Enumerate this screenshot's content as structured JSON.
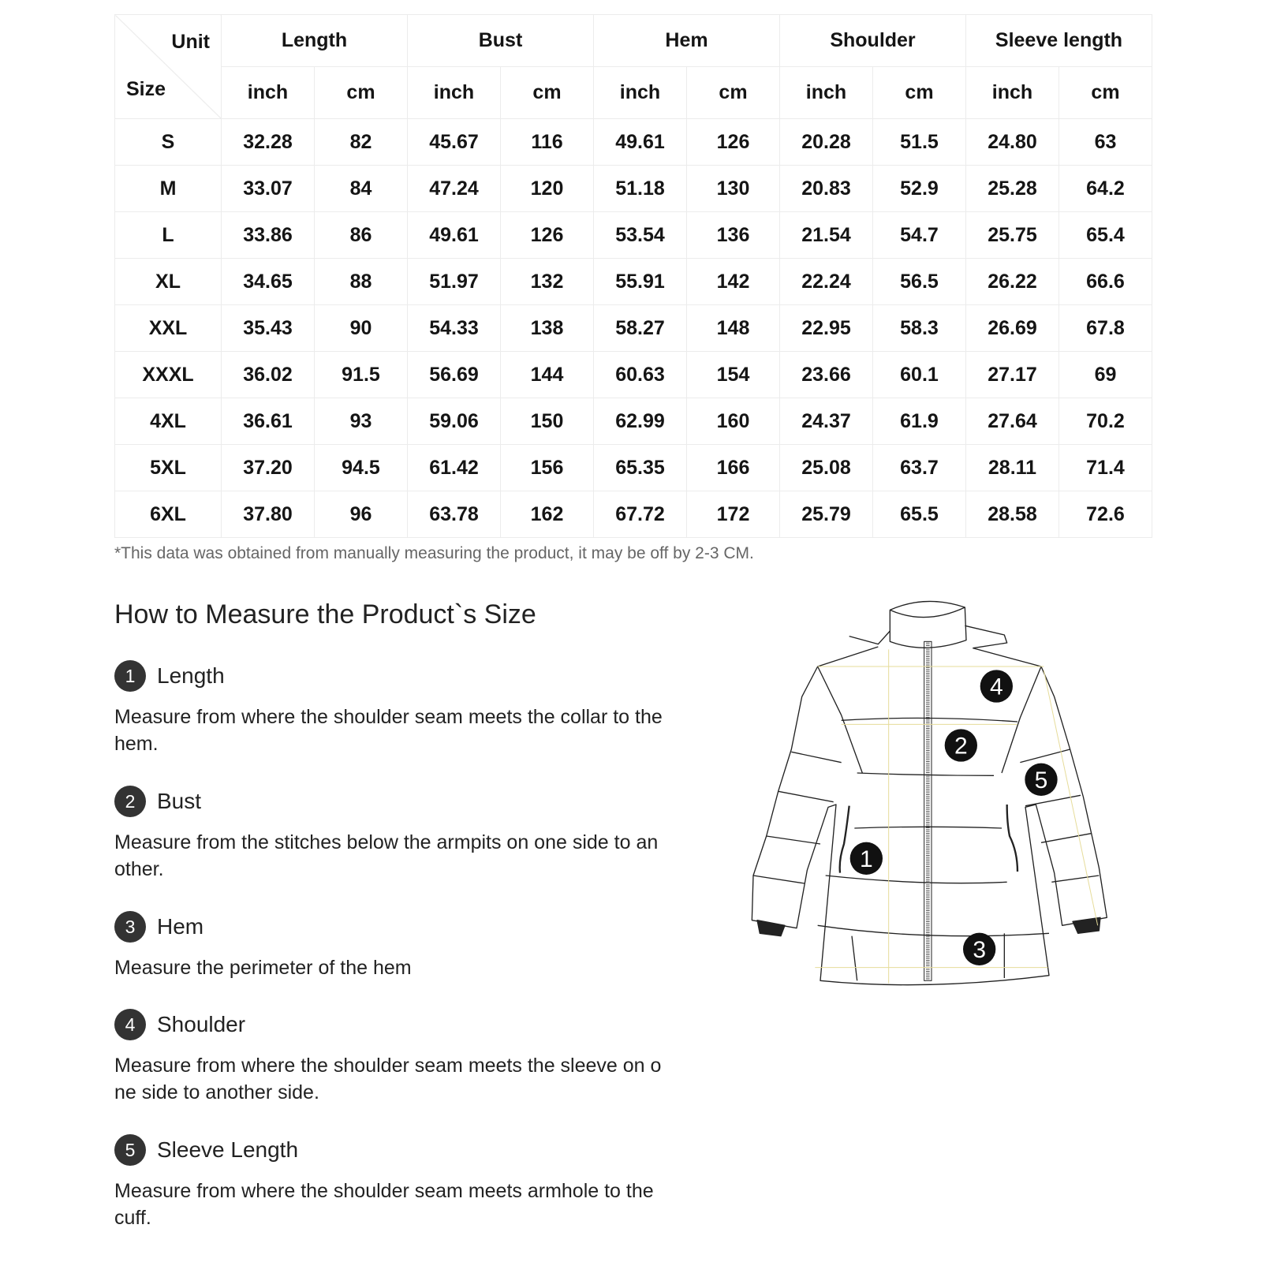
{
  "table": {
    "corner": {
      "unit": "Unit",
      "size": "Size"
    },
    "groups": [
      "Length",
      "Bust",
      "Hem",
      "Shoulder",
      "Sleeve length"
    ],
    "units": [
      "inch",
      "cm"
    ],
    "rows": [
      {
        "size": "S",
        "values": [
          "32.28",
          "82",
          "45.67",
          "116",
          "49.61",
          "126",
          "20.28",
          "51.5",
          "24.80",
          "63"
        ]
      },
      {
        "size": "M",
        "values": [
          "33.07",
          "84",
          "47.24",
          "120",
          "51.18",
          "130",
          "20.83",
          "52.9",
          "25.28",
          "64.2"
        ]
      },
      {
        "size": "L",
        "values": [
          "33.86",
          "86",
          "49.61",
          "126",
          "53.54",
          "136",
          "21.54",
          "54.7",
          "25.75",
          "65.4"
        ]
      },
      {
        "size": "XL",
        "values": [
          "34.65",
          "88",
          "51.97",
          "132",
          "55.91",
          "142",
          "22.24",
          "56.5",
          "26.22",
          "66.6"
        ]
      },
      {
        "size": "XXL",
        "values": [
          "35.43",
          "90",
          "54.33",
          "138",
          "58.27",
          "148",
          "22.95",
          "58.3",
          "26.69",
          "67.8"
        ]
      },
      {
        "size": "XXXL",
        "values": [
          "36.02",
          "91.5",
          "56.69",
          "144",
          "60.63",
          "154",
          "23.66",
          "60.1",
          "27.17",
          "69"
        ]
      },
      {
        "size": "4XL",
        "values": [
          "36.61",
          "93",
          "59.06",
          "150",
          "62.99",
          "160",
          "24.37",
          "61.9",
          "27.64",
          "70.2"
        ]
      },
      {
        "size": "5XL",
        "values": [
          "37.20",
          "94.5",
          "61.42",
          "156",
          "65.35",
          "166",
          "25.08",
          "63.7",
          "28.11",
          "71.4"
        ]
      },
      {
        "size": "6XL",
        "values": [
          "37.80",
          "96",
          "63.78",
          "162",
          "67.72",
          "172",
          "25.79",
          "65.5",
          "28.58",
          "72.6"
        ]
      }
    ]
  },
  "note": "*This data was obtained from manually measuring the product, it may be off by 2-3 CM.",
  "guide": {
    "heading": "How to Measure the Product`s Size",
    "items": [
      {
        "num": "1",
        "title": "Length",
        "lines": [
          "Measure from where the shoulder seam meets the collar to the",
          "hem."
        ]
      },
      {
        "num": "2",
        "title": "Bust",
        "lines": [
          "Measure from the stitches below the armpits on one side to an",
          "other."
        ]
      },
      {
        "num": "3",
        "title": "Hem",
        "lines": [
          "Measure the perimeter of the hem"
        ]
      },
      {
        "num": "4",
        "title": "Shoulder",
        "lines": [
          "Measure from where the shoulder seam meets the sleeve on o",
          "ne side to another side."
        ]
      },
      {
        "num": "5",
        "title": "Sleeve Length",
        "lines": [
          "Measure from where the shoulder seam meets armhole to the",
          "cuff."
        ]
      }
    ]
  },
  "illustration": {
    "icon": "puffer-jacket-diagram",
    "markers": [
      "1",
      "2",
      "3",
      "4",
      "5"
    ],
    "guide_line_color": "#e6dc9a"
  }
}
